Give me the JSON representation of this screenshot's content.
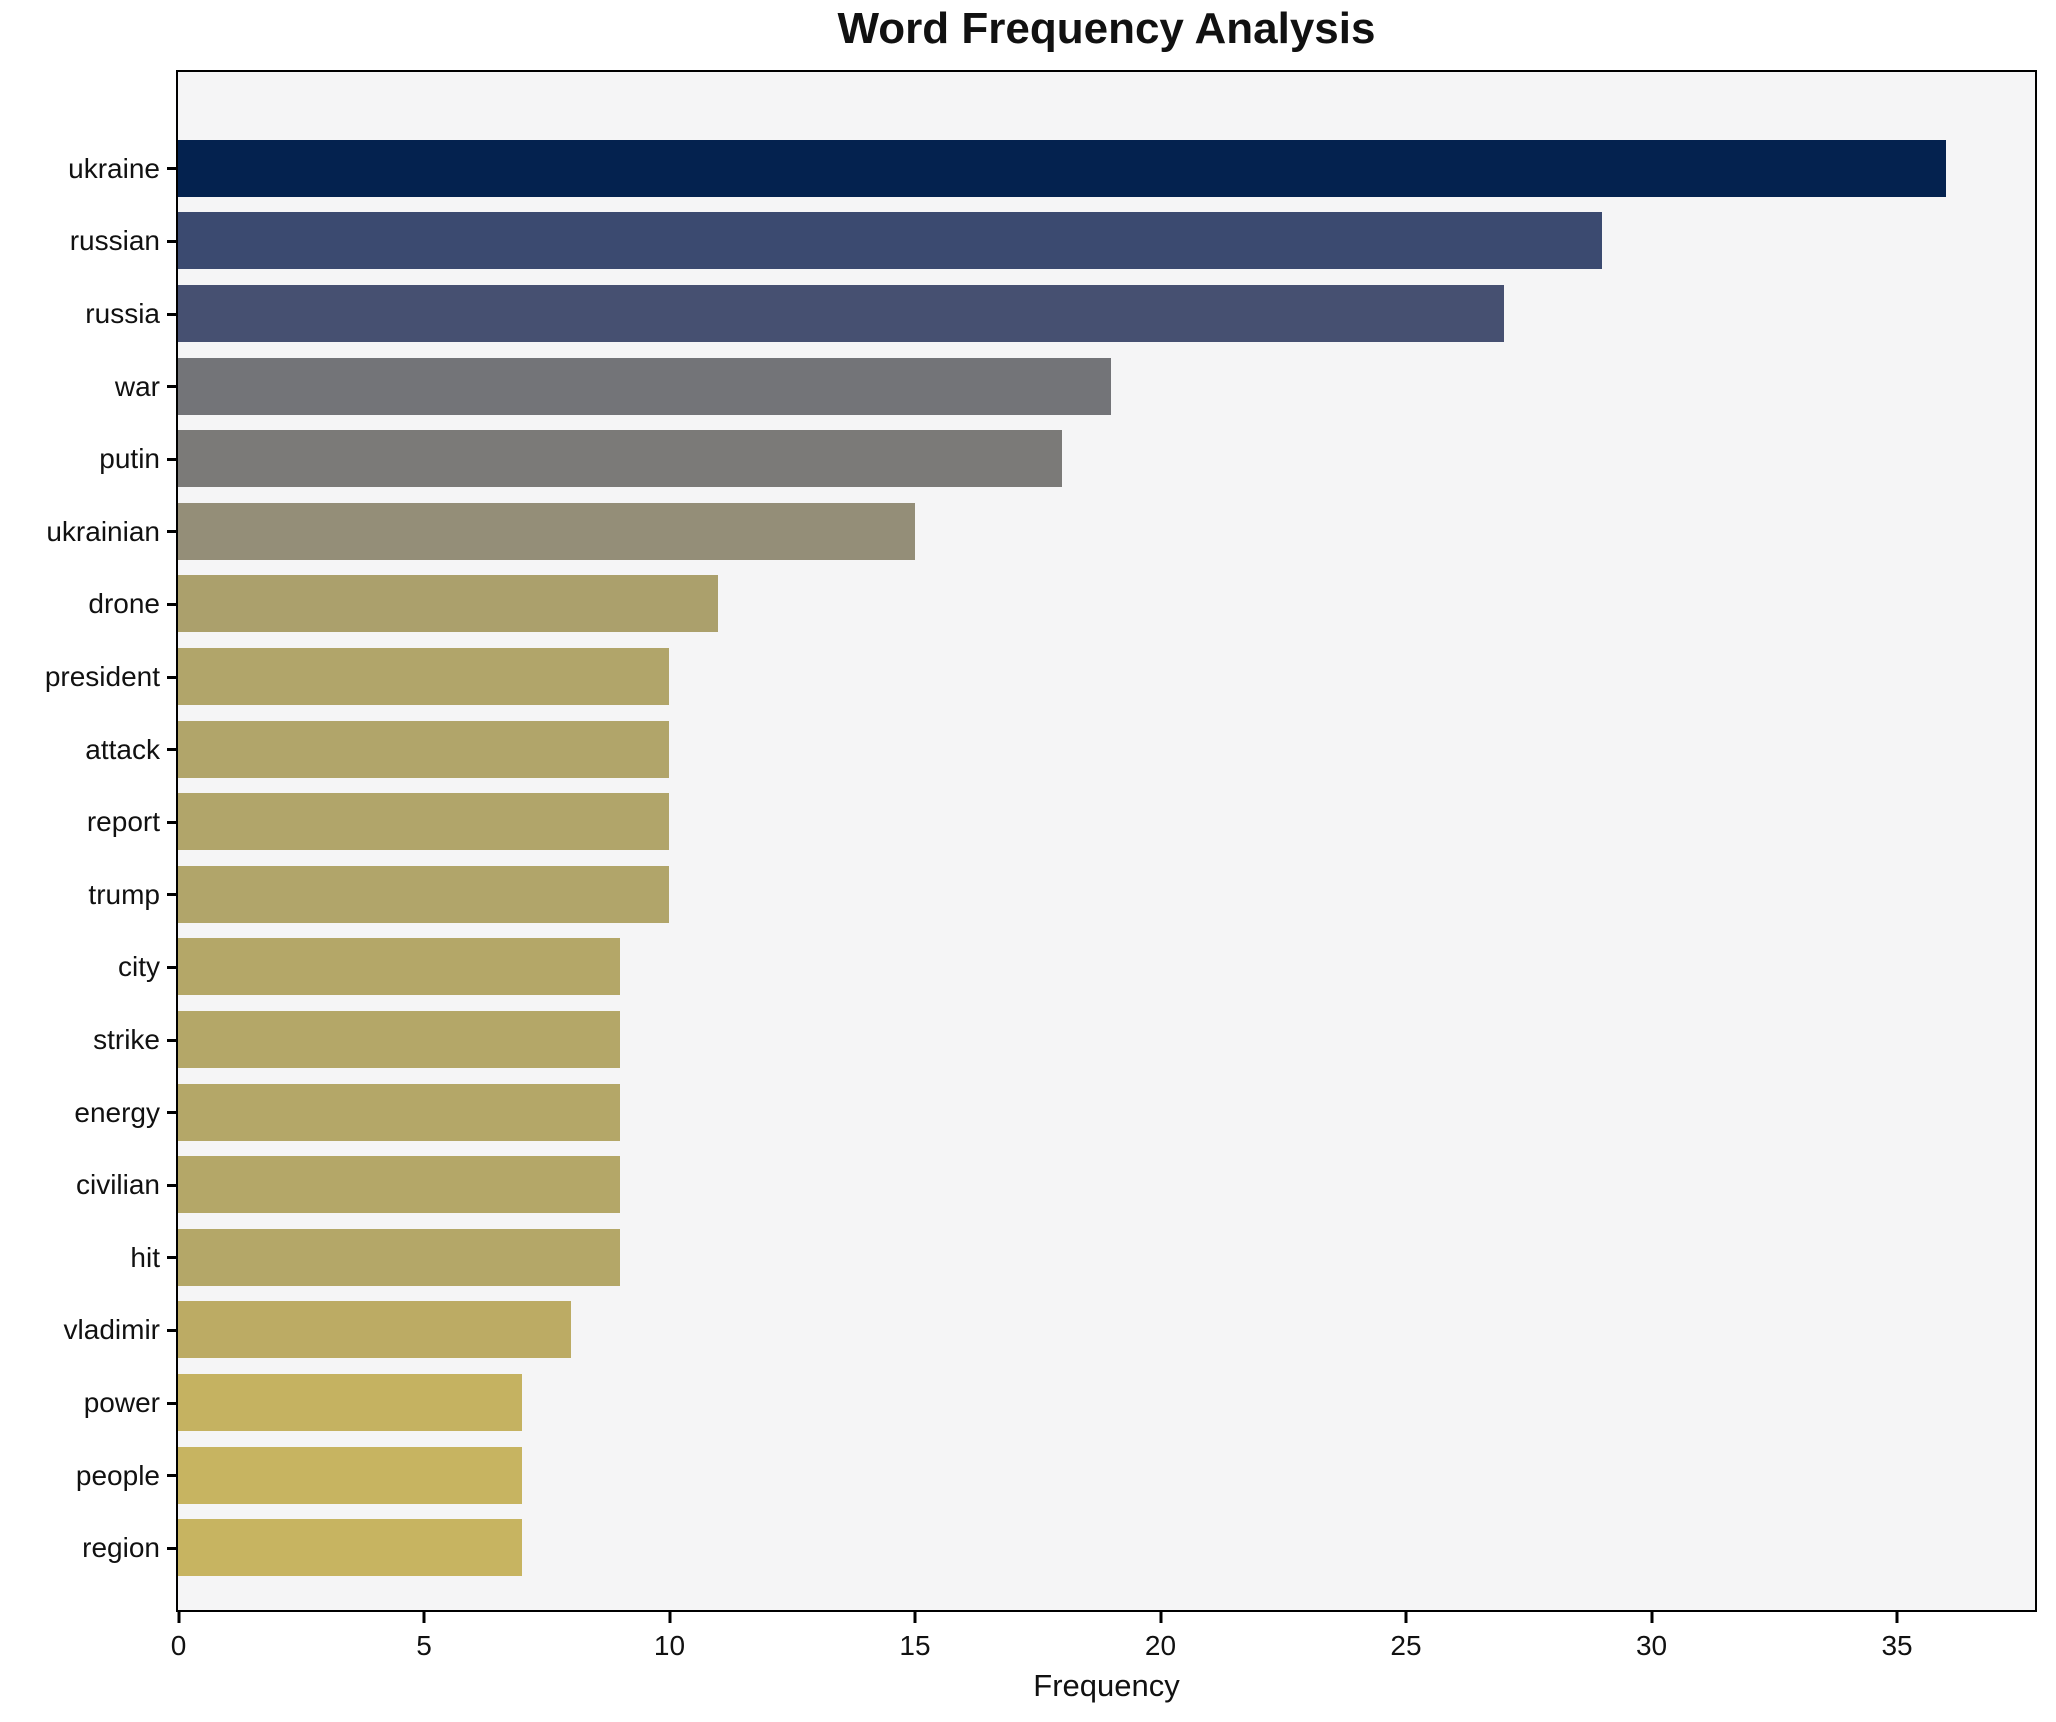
{
  "chart_data": {
    "type": "bar",
    "orientation": "horizontal",
    "title": "Word Frequency Analysis",
    "xlabel": "Frequency",
    "ylabel": "",
    "categories": [
      "ukraine",
      "russian",
      "russia",
      "war",
      "putin",
      "ukrainian",
      "drone",
      "president",
      "attack",
      "report",
      "trump",
      "city",
      "strike",
      "energy",
      "civilian",
      "hit",
      "vladimir",
      "power",
      "people",
      "region"
    ],
    "values": [
      36,
      29,
      27,
      19,
      18,
      15,
      11,
      10,
      10,
      10,
      10,
      9,
      9,
      9,
      9,
      9,
      8,
      7,
      7,
      7
    ],
    "bar_colors": [
      "#04224f",
      "#3b4a70",
      "#465071",
      "#737478",
      "#7b7a78",
      "#948e78",
      "#aba06c",
      "#b1a56a",
      "#b1a56a",
      "#b1a56a",
      "#b1a56a",
      "#b4a768",
      "#b4a768",
      "#b4a768",
      "#b4a768",
      "#b4a768",
      "#bcab64",
      "#c5b261",
      "#c7b461",
      "#c7b461"
    ],
    "x_ticks": [
      0,
      5,
      10,
      15,
      20,
      25,
      30,
      35
    ],
    "xlim": [
      0,
      37.8
    ],
    "grid": false,
    "legend_position": "none",
    "plot_background": "#f5f5f6",
    "figure_background": "#ffffff",
    "spine_color": "#000000"
  }
}
